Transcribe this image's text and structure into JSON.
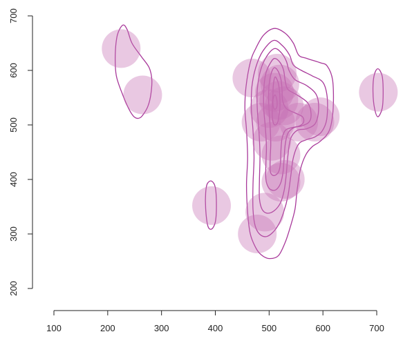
{
  "chart_data": {
    "type": "scatter",
    "title": "",
    "xlabel": "",
    "ylabel": "",
    "xlim": [
      100,
      700
    ],
    "ylim": [
      200,
      700
    ],
    "x_ticks": [
      "100",
      "200",
      "300",
      "400",
      "500",
      "600",
      "700"
    ],
    "y_ticks": [
      "200",
      "300",
      "400",
      "500",
      "600",
      "700"
    ],
    "grid": false,
    "legend": "none",
    "colors": {
      "points": "#c46fb4",
      "contours": "#a8389a",
      "axes": "#222222"
    },
    "points": [
      {
        "x": 225,
        "y": 640
      },
      {
        "x": 265,
        "y": 555
      },
      {
        "x": 393,
        "y": 352
      },
      {
        "x": 468,
        "y": 586
      },
      {
        "x": 478,
        "y": 300
      },
      {
        "x": 485,
        "y": 505
      },
      {
        "x": 492,
        "y": 340
      },
      {
        "x": 500,
        "y": 530
      },
      {
        "x": 505,
        "y": 470
      },
      {
        "x": 510,
        "y": 560
      },
      {
        "x": 512,
        "y": 505
      },
      {
        "x": 515,
        "y": 595
      },
      {
        "x": 518,
        "y": 545
      },
      {
        "x": 520,
        "y": 575
      },
      {
        "x": 522,
        "y": 445
      },
      {
        "x": 522,
        "y": 395
      },
      {
        "x": 528,
        "y": 535
      },
      {
        "x": 530,
        "y": 400
      },
      {
        "x": 555,
        "y": 505
      },
      {
        "x": 585,
        "y": 505
      },
      {
        "x": 595,
        "y": 515
      },
      {
        "x": 703,
        "y": 560
      }
    ],
    "contours": [
      [
        [
          228,
          683
        ],
        [
          236,
          675
        ],
        [
          245,
          650
        ],
        [
          262,
          626
        ],
        [
          277,
          605
        ],
        [
          282,
          582
        ],
        [
          280,
          555
        ],
        [
          275,
          535
        ],
        [
          268,
          522
        ],
        [
          260,
          513
        ],
        [
          250,
          514
        ],
        [
          240,
          528
        ],
        [
          228,
          555
        ],
        [
          216,
          590
        ],
        [
          214,
          628
        ],
        [
          218,
          665
        ]
      ],
      [
        [
          385,
          392
        ],
        [
          393,
          397
        ],
        [
          400,
          385
        ],
        [
          402,
          352
        ],
        [
          400,
          322
        ],
        [
          393,
          309
        ],
        [
          386,
          315
        ],
        [
          382,
          347
        ],
        [
          382,
          375
        ]
      ],
      [
        [
          702,
          603
        ],
        [
          710,
          590
        ],
        [
          712,
          560
        ],
        [
          710,
          530
        ],
        [
          702,
          515
        ],
        [
          696,
          530
        ],
        [
          693,
          560
        ],
        [
          695,
          590
        ]
      ],
      [
        [
          510,
          677
        ],
        [
          530,
          668
        ],
        [
          545,
          650
        ],
        [
          555,
          628
        ],
        [
          570,
          622
        ],
        [
          595,
          614
        ],
        [
          608,
          608
        ],
        [
          618,
          582
        ],
        [
          619,
          530
        ],
        [
          612,
          490
        ],
        [
          595,
          470
        ],
        [
          580,
          460
        ],
        [
          568,
          445
        ],
        [
          558,
          418
        ],
        [
          552,
          380
        ],
        [
          548,
          345
        ],
        [
          540,
          315
        ],
        [
          530,
          285
        ],
        [
          517,
          260
        ],
        [
          500,
          255
        ],
        [
          485,
          262
        ],
        [
          475,
          275
        ],
        [
          465,
          300
        ],
        [
          460,
          340
        ],
        [
          458,
          390
        ],
        [
          460,
          440
        ],
        [
          458,
          490
        ],
        [
          455,
          530
        ],
        [
          457,
          570
        ],
        [
          465,
          615
        ],
        [
          475,
          640
        ],
        [
          490,
          665
        ]
      ],
      [
        [
          508,
          655
        ],
        [
          525,
          645
        ],
        [
          538,
          628
        ],
        [
          545,
          610
        ],
        [
          560,
          600
        ],
        [
          580,
          590
        ],
        [
          600,
          578
        ],
        [
          608,
          550
        ],
        [
          607,
          510
        ],
        [
          598,
          488
        ],
        [
          585,
          478
        ],
        [
          570,
          473
        ],
        [
          555,
          465
        ],
        [
          545,
          440
        ],
        [
          540,
          405
        ],
        [
          535,
          370
        ],
        [
          527,
          340
        ],
        [
          518,
          318
        ],
        [
          506,
          302
        ],
        [
          494,
          295
        ],
        [
          482,
          300
        ],
        [
          474,
          315
        ],
        [
          470,
          345
        ],
        [
          470,
          390
        ],
        [
          472,
          440
        ],
        [
          470,
          490
        ],
        [
          467,
          530
        ],
        [
          468,
          570
        ],
        [
          475,
          605
        ],
        [
          488,
          635
        ]
      ],
      [
        [
          510,
          640
        ],
        [
          523,
          632
        ],
        [
          532,
          617
        ],
        [
          537,
          600
        ],
        [
          548,
          583
        ],
        [
          570,
          572
        ],
        [
          588,
          555
        ],
        [
          592,
          528
        ],
        [
          586,
          503
        ],
        [
          570,
          493
        ],
        [
          552,
          490
        ],
        [
          540,
          475
        ],
        [
          535,
          445
        ],
        [
          532,
          410
        ],
        [
          528,
          380
        ],
        [
          521,
          357
        ],
        [
          510,
          343
        ],
        [
          497,
          338
        ],
        [
          487,
          345
        ],
        [
          482,
          365
        ],
        [
          482,
          400
        ],
        [
          483,
          445
        ],
        [
          481,
          490
        ],
        [
          478,
          530
        ],
        [
          478,
          565
        ],
        [
          484,
          600
        ],
        [
          495,
          625
        ]
      ],
      [
        [
          510,
          622
        ],
        [
          520,
          615
        ],
        [
          527,
          600
        ],
        [
          530,
          580
        ],
        [
          535,
          565
        ],
        [
          552,
          555
        ],
        [
          572,
          540
        ],
        [
          578,
          520
        ],
        [
          574,
          505
        ],
        [
          560,
          498
        ],
        [
          546,
          495
        ],
        [
          535,
          485
        ],
        [
          530,
          465
        ],
        [
          528,
          440
        ],
        [
          526,
          415
        ],
        [
          522,
          395
        ],
        [
          515,
          383
        ],
        [
          507,
          380
        ],
        [
          499,
          385
        ],
        [
          494,
          400
        ],
        [
          494,
          430
        ],
        [
          495,
          460
        ],
        [
          493,
          495
        ],
        [
          490,
          530
        ],
        [
          490,
          565
        ],
        [
          494,
          595
        ],
        [
          502,
          613
        ]
      ],
      [
        [
          510,
          605
        ],
        [
          517,
          598
        ],
        [
          522,
          583
        ],
        [
          524,
          565
        ],
        [
          525,
          545
        ],
        [
          532,
          530
        ],
        [
          548,
          522
        ],
        [
          562,
          515
        ],
        [
          564,
          505
        ],
        [
          556,
          498
        ],
        [
          542,
          495
        ],
        [
          530,
          490
        ],
        [
          524,
          475
        ],
        [
          522,
          455
        ],
        [
          521,
          430
        ],
        [
          518,
          415
        ],
        [
          512,
          408
        ],
        [
          506,
          408
        ],
        [
          502,
          416
        ],
        [
          502,
          440
        ],
        [
          503,
          465
        ],
        [
          502,
          495
        ],
        [
          500,
          525
        ],
        [
          499,
          555
        ],
        [
          501,
          582
        ],
        [
          505,
          598
        ]
      ],
      [
        [
          511,
          588
        ],
        [
          516,
          580
        ],
        [
          519,
          565
        ],
        [
          520,
          548
        ],
        [
          520,
          530
        ],
        [
          518,
          515
        ],
        [
          516,
          505
        ],
        [
          512,
          500
        ],
        [
          508,
          503
        ],
        [
          506,
          515
        ],
        [
          506,
          535
        ],
        [
          507,
          555
        ],
        [
          508,
          575
        ]
      ],
      [
        [
          511,
          555
        ],
        [
          514,
          548
        ],
        [
          515,
          538
        ],
        [
          513,
          530
        ],
        [
          509,
          530
        ],
        [
          507,
          540
        ],
        [
          508,
          550
        ]
      ]
    ]
  }
}
